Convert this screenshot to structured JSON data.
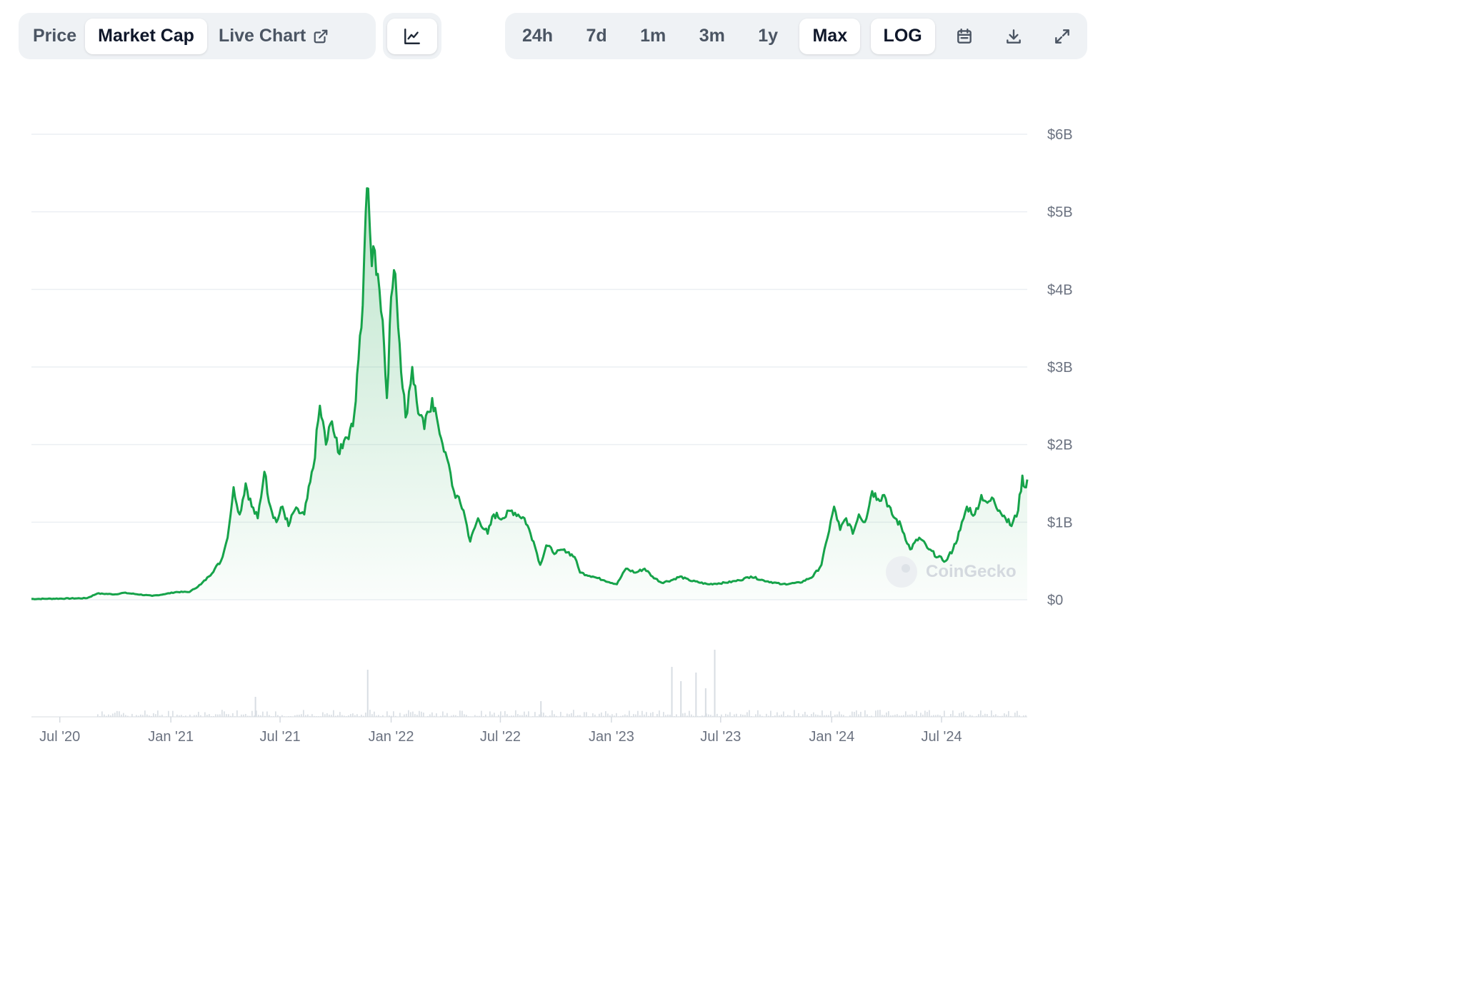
{
  "toolbar": {
    "metric_tabs": [
      {
        "label": "Price",
        "active": false
      },
      {
        "label": "Market Cap",
        "active": true
      },
      {
        "label": "Live Chart",
        "active": false
      }
    ],
    "chart_type_icon": "line-chart-icon",
    "ranges": [
      {
        "label": "24h",
        "active": false
      },
      {
        "label": "7d",
        "active": false
      },
      {
        "label": "1m",
        "active": false
      },
      {
        "label": "3m",
        "active": false
      },
      {
        "label": "1y",
        "active": false
      },
      {
        "label": "Max",
        "active": true
      }
    ],
    "log_label": "LOG",
    "icons": [
      "calendar-icon",
      "download-icon",
      "expand-icon"
    ]
  },
  "watermark": "CoinGecko",
  "colors": {
    "line": "#16a34a",
    "grid": "#eceff3",
    "volume": "#d8dde3"
  },
  "chart_data": {
    "type": "area",
    "title": "",
    "xlabel": "",
    "ylabel": "",
    "ylim": [
      0,
      6000000000
    ],
    "grid": true,
    "y_ticks": [
      "$0",
      "$1B",
      "$2B",
      "$3B",
      "$4B",
      "$5B",
      "$6B"
    ],
    "x_ticks": [
      "Jul '20",
      "Jan '21",
      "Jul '21",
      "Jan '22",
      "Jul '22",
      "Jan '23",
      "Jul '23",
      "Jan '24",
      "Jul '24"
    ],
    "x_start": "2020-05-15",
    "x_end": "2024-11-20",
    "series": [
      {
        "values": [
          [
            "2020-05-15",
            0.01
          ],
          [
            "2020-07-01",
            0.015
          ],
          [
            "2020-08-15",
            0.02
          ],
          [
            "2020-09-01",
            0.08
          ],
          [
            "2020-10-01",
            0.07
          ],
          [
            "2020-10-15",
            0.09
          ],
          [
            "2020-12-01",
            0.05
          ],
          [
            "2020-12-20",
            0.07
          ],
          [
            "2021-01-10",
            0.1
          ],
          [
            "2021-02-01",
            0.1
          ],
          [
            "2021-02-20",
            0.2
          ],
          [
            "2021-03-05",
            0.3
          ],
          [
            "2021-03-25",
            0.5
          ],
          [
            "2021-04-05",
            0.8
          ],
          [
            "2021-04-15",
            1.45
          ],
          [
            "2021-04-25",
            1.1
          ],
          [
            "2021-05-05",
            1.5
          ],
          [
            "2021-05-15",
            1.2
          ],
          [
            "2021-05-25",
            1.05
          ],
          [
            "2021-06-05",
            1.65
          ],
          [
            "2021-06-15",
            1.2
          ],
          [
            "2021-06-25",
            1.0
          ],
          [
            "2021-07-05",
            1.2
          ],
          [
            "2021-07-15",
            0.95
          ],
          [
            "2021-07-25",
            1.15
          ],
          [
            "2021-08-10",
            1.1
          ],
          [
            "2021-08-25",
            1.7
          ],
          [
            "2021-09-05",
            2.5
          ],
          [
            "2021-09-15",
            2.0
          ],
          [
            "2021-09-25",
            2.3
          ],
          [
            "2021-10-05",
            1.9
          ],
          [
            "2021-10-15",
            2.05
          ],
          [
            "2021-10-25",
            2.2
          ],
          [
            "2021-11-01",
            2.4
          ],
          [
            "2021-11-08",
            3.1
          ],
          [
            "2021-11-15",
            3.8
          ],
          [
            "2021-11-20",
            5.0
          ],
          [
            "2021-11-24",
            5.3
          ],
          [
            "2021-11-30",
            4.3
          ],
          [
            "2021-12-05",
            4.5
          ],
          [
            "2021-12-10",
            4.2
          ],
          [
            "2021-12-18",
            3.6
          ],
          [
            "2021-12-25",
            2.6
          ],
          [
            "2022-01-01",
            3.9
          ],
          [
            "2022-01-08",
            4.2
          ],
          [
            "2022-01-15",
            3.3
          ],
          [
            "2022-01-25",
            2.35
          ],
          [
            "2022-02-05",
            3.0
          ],
          [
            "2022-02-15",
            2.4
          ],
          [
            "2022-02-25",
            2.2
          ],
          [
            "2022-03-10",
            2.6
          ],
          [
            "2022-03-20",
            2.25
          ],
          [
            "2022-04-01",
            1.9
          ],
          [
            "2022-04-15",
            1.4
          ],
          [
            "2022-05-01",
            1.15
          ],
          [
            "2022-05-12",
            0.75
          ],
          [
            "2022-05-25",
            1.05
          ],
          [
            "2022-06-10",
            0.85
          ],
          [
            "2022-06-20",
            1.1
          ],
          [
            "2022-07-05",
            1.05
          ],
          [
            "2022-07-20",
            1.15
          ],
          [
            "2022-08-10",
            1.05
          ],
          [
            "2022-08-25",
            0.75
          ],
          [
            "2022-09-05",
            0.45
          ],
          [
            "2022-09-15",
            0.7
          ],
          [
            "2022-10-01",
            0.6
          ],
          [
            "2022-10-15",
            0.65
          ],
          [
            "2022-11-01",
            0.55
          ],
          [
            "2022-11-10",
            0.35
          ],
          [
            "2022-12-01",
            0.3
          ],
          [
            "2022-12-20",
            0.25
          ],
          [
            "2023-01-10",
            0.2
          ],
          [
            "2023-01-25",
            0.4
          ],
          [
            "2023-02-10",
            0.35
          ],
          [
            "2023-02-25",
            0.4
          ],
          [
            "2023-03-10",
            0.3
          ],
          [
            "2023-03-25",
            0.22
          ],
          [
            "2023-04-10",
            0.25
          ],
          [
            "2023-04-25",
            0.3
          ],
          [
            "2023-05-10",
            0.25
          ],
          [
            "2023-06-10",
            0.2
          ],
          [
            "2023-07-10",
            0.22
          ],
          [
            "2023-08-01",
            0.25
          ],
          [
            "2023-08-20",
            0.3
          ],
          [
            "2023-09-10",
            0.25
          ],
          [
            "2023-10-10",
            0.2
          ],
          [
            "2023-11-10",
            0.22
          ],
          [
            "2023-12-01",
            0.3
          ],
          [
            "2023-12-15",
            0.45
          ],
          [
            "2023-12-25",
            0.8
          ],
          [
            "2024-01-05",
            1.2
          ],
          [
            "2024-01-15",
            0.9
          ],
          [
            "2024-01-25",
            1.05
          ],
          [
            "2024-02-05",
            0.85
          ],
          [
            "2024-02-15",
            1.1
          ],
          [
            "2024-02-25",
            1.0
          ],
          [
            "2024-03-08",
            1.4
          ],
          [
            "2024-03-18",
            1.3
          ],
          [
            "2024-03-28",
            1.35
          ],
          [
            "2024-04-10",
            1.1
          ],
          [
            "2024-04-25",
            0.95
          ],
          [
            "2024-05-10",
            0.65
          ],
          [
            "2024-05-25",
            0.8
          ],
          [
            "2024-06-10",
            0.65
          ],
          [
            "2024-06-25",
            0.55
          ],
          [
            "2024-07-08",
            0.5
          ],
          [
            "2024-07-20",
            0.65
          ],
          [
            "2024-08-01",
            0.9
          ],
          [
            "2024-08-12",
            1.2
          ],
          [
            "2024-08-25",
            1.1
          ],
          [
            "2024-09-05",
            1.35
          ],
          [
            "2024-09-15",
            1.25
          ],
          [
            "2024-09-25",
            1.3
          ],
          [
            "2024-10-05",
            1.15
          ],
          [
            "2024-10-15",
            1.05
          ],
          [
            "2024-10-25",
            0.95
          ],
          [
            "2024-11-05",
            1.15
          ],
          [
            "2024-11-12",
            1.6
          ],
          [
            "2024-11-16",
            1.45
          ],
          [
            "2024-11-20",
            1.55
          ]
        ]
      }
    ]
  }
}
